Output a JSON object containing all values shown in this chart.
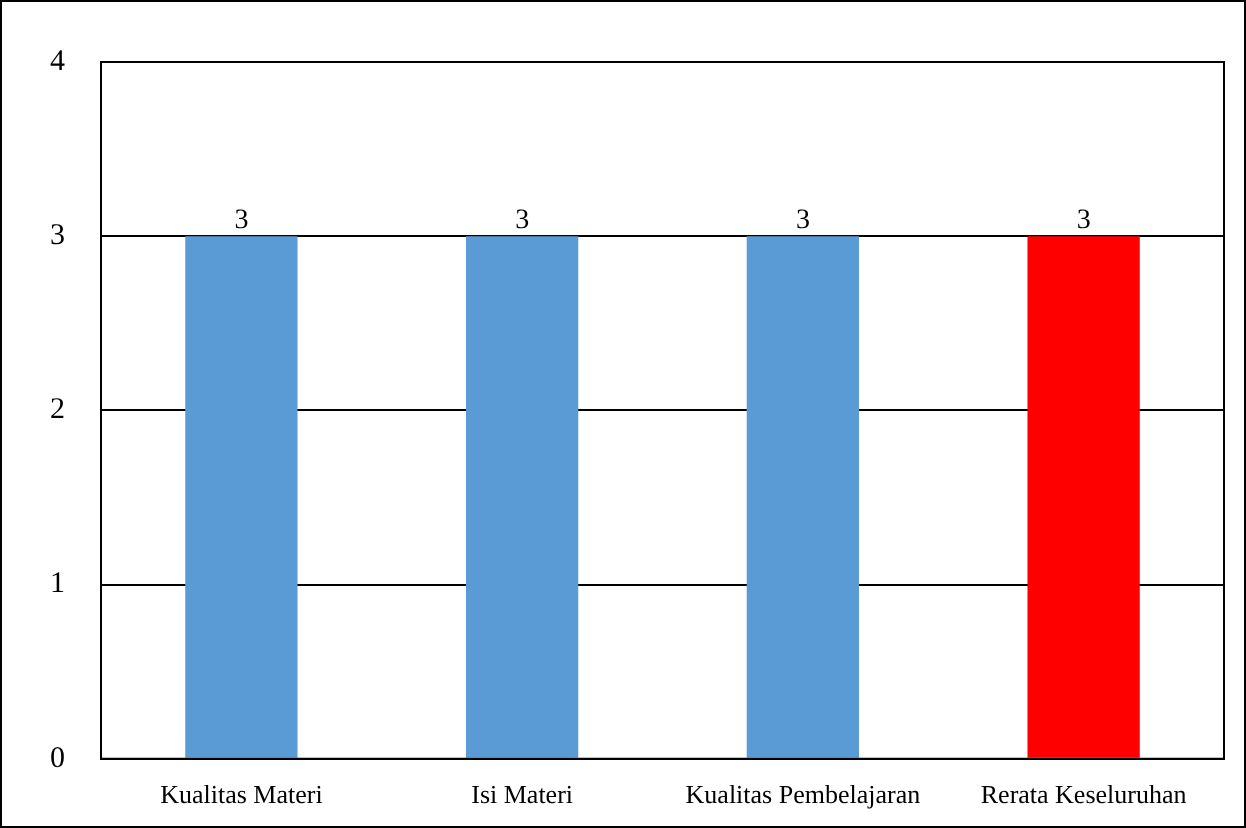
{
  "chart_data": {
    "type": "bar",
    "categories": [
      "Kualitas Materi",
      "Isi Materi",
      "Kualitas Pembelajaran",
      "Rerata Keseluruhan"
    ],
    "values": [
      3,
      3,
      3,
      3
    ],
    "colors": [
      "#5b9bd5",
      "#5b9bd5",
      "#5b9bd5",
      "#ff0000"
    ],
    "ylim": [
      0,
      4
    ],
    "yticks": [
      0,
      1,
      2,
      3,
      4
    ],
    "grid": "y",
    "legend": false,
    "data_labels": true
  }
}
